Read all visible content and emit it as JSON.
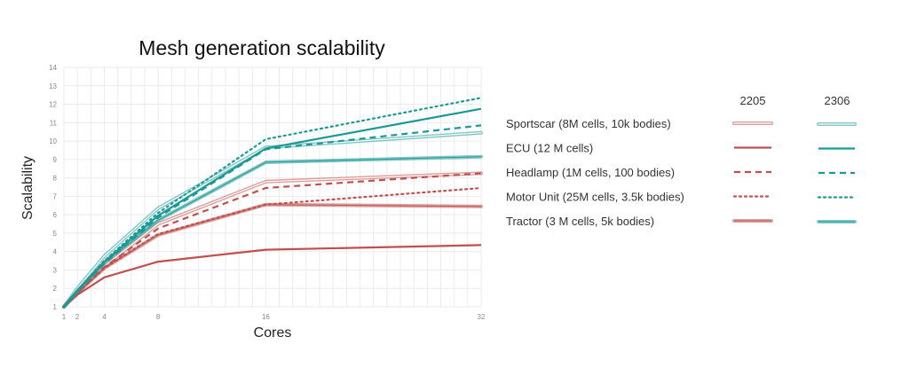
{
  "chart_data": {
    "type": "line",
    "title": "Mesh generation scalability",
    "xlabel": "Cores",
    "ylabel": "Scalability",
    "x_ticks": [
      1,
      2,
      4,
      8,
      16,
      32
    ],
    "y_ticks": [
      1,
      2,
      3,
      4,
      5,
      6,
      7,
      8,
      9,
      10,
      11,
      12,
      13,
      14
    ],
    "xlim": [
      1,
      32
    ],
    "ylim": [
      1,
      14
    ],
    "grid": true,
    "x": [
      1,
      2,
      4,
      8,
      16,
      32
    ],
    "legend": {
      "placement": "right",
      "column_headers": [
        "2205",
        "2306"
      ]
    },
    "colors": {
      "2205": "#c0504d",
      "2306": "#1a9a96"
    },
    "series": [
      {
        "name": "Sportscar (8M cells, 10k bodies)",
        "version": "2205",
        "style": "double",
        "values": [
          1,
          1.8,
          3.2,
          5.5,
          7.8,
          8.25
        ]
      },
      {
        "name": "ECU (12 M cells)",
        "version": "2205",
        "style": "solid",
        "values": [
          1,
          1.65,
          2.6,
          3.45,
          4.1,
          4.35
        ]
      },
      {
        "name": "Headlamp (1M cells, 100 bodies)",
        "version": "2205",
        "style": "dashed",
        "values": [
          1,
          1.75,
          3.15,
          5.25,
          7.45,
          8.25
        ]
      },
      {
        "name": "Motor Unit (25M cells, 3.5k bodies)",
        "version": "2205",
        "style": "dotted",
        "values": [
          1,
          1.75,
          3.1,
          4.95,
          6.55,
          7.45
        ]
      },
      {
        "name": "Tractor (3 M cells, 5k bodies)",
        "version": "2205",
        "style": "thick",
        "values": [
          1,
          1.75,
          3.1,
          4.9,
          6.55,
          6.45
        ]
      },
      {
        "name": "Sportscar (8M cells, 10k bodies)",
        "version": "2306",
        "style": "double",
        "values": [
          1,
          2.0,
          3.75,
          6.35,
          9.65,
          10.45
        ]
      },
      {
        "name": "ECU (12 M cells)",
        "version": "2306",
        "style": "solid",
        "values": [
          1,
          1.9,
          3.45,
          5.95,
          9.6,
          11.75
        ]
      },
      {
        "name": "Headlamp (1M cells, 100 bodies)",
        "version": "2306",
        "style": "dashed",
        "values": [
          1,
          1.85,
          3.35,
          5.85,
          9.55,
          10.85
        ]
      },
      {
        "name": "Motor Unit (25M cells, 3.5k bodies)",
        "version": "2306",
        "style": "dotted",
        "values": [
          1,
          1.9,
          3.5,
          6.1,
          10.1,
          12.35
        ]
      },
      {
        "name": "Tractor (3 M cells, 5k bodies)",
        "version": "2306",
        "style": "thick",
        "values": [
          1,
          1.85,
          3.4,
          5.7,
          8.85,
          9.15
        ]
      }
    ]
  }
}
